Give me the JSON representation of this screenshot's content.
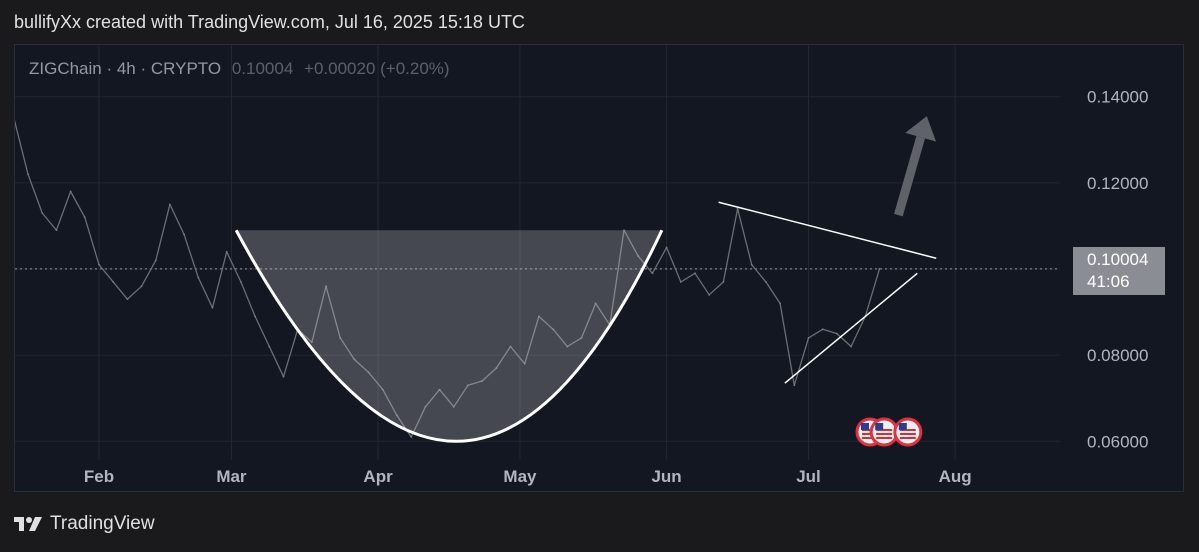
{
  "header": {
    "text": "bullifyXx created with TradingView.com, Jul 16, 2025 15:18 UTC"
  },
  "legend": {
    "symbol": "ZIGChain · 4h · CRYPTO",
    "price": "0.10004",
    "change": "+0.00020 (+0.20%)"
  },
  "price_tag": {
    "price": "0.10004",
    "countdown": "41:06"
  },
  "footer": {
    "brand": "TradingView",
    "logo_icon": "tradingview-logo-icon"
  },
  "colors": {
    "background": "#131722",
    "price_line": "#9598a1",
    "pattern": "#ffffff"
  },
  "chart_data": {
    "type": "line",
    "title": "ZIGChain · 4h · CRYPTO",
    "x_ticks": [
      "Feb",
      "Mar",
      "Apr",
      "May",
      "Jun",
      "Jul",
      "Aug"
    ],
    "y_ticks": [
      "0.14000",
      "0.12000",
      "0.10000",
      "0.08000",
      "0.06000"
    ],
    "ylim": [
      0.048,
      0.152
    ],
    "current_price": 0.10004,
    "grid": true,
    "series": [
      {
        "x": [
          "2025-01-11",
          "2025-01-14",
          "2025-01-17",
          "2025-01-20",
          "2025-01-23",
          "2025-01-26",
          "2025-01-29",
          "2025-02-01",
          "2025-02-04",
          "2025-02-07",
          "2025-02-10",
          "2025-02-13",
          "2025-02-16",
          "2025-02-19",
          "2025-02-22",
          "2025-02-25",
          "2025-02-28",
          "2025-03-03",
          "2025-03-06",
          "2025-03-09",
          "2025-03-12",
          "2025-03-15",
          "2025-03-18",
          "2025-03-21",
          "2025-03-24",
          "2025-03-27",
          "2025-03-30",
          "2025-04-02",
          "2025-04-05",
          "2025-04-08",
          "2025-04-11",
          "2025-04-14",
          "2025-04-17",
          "2025-04-20",
          "2025-04-23",
          "2025-04-26",
          "2025-04-29",
          "2025-05-02",
          "2025-05-05",
          "2025-05-08",
          "2025-05-11",
          "2025-05-14",
          "2025-05-17",
          "2025-05-20",
          "2025-05-23",
          "2025-05-26",
          "2025-05-29",
          "2025-06-01",
          "2025-06-04",
          "2025-06-07",
          "2025-06-10",
          "2025-06-13",
          "2025-06-16",
          "2025-06-19",
          "2025-06-22",
          "2025-06-25",
          "2025-06-28",
          "2025-07-01",
          "2025-07-04",
          "2025-07-07",
          "2025-07-10",
          "2025-07-13",
          "2025-07-16"
        ],
        "values": [
          0.117,
          0.135,
          0.122,
          0.113,
          0.109,
          0.118,
          0.112,
          0.101,
          0.097,
          0.093,
          0.096,
          0.102,
          0.115,
          0.108,
          0.098,
          0.091,
          0.104,
          0.097,
          0.089,
          0.082,
          0.075,
          0.086,
          0.083,
          0.096,
          0.084,
          0.079,
          0.076,
          0.072,
          0.066,
          0.061,
          0.068,
          0.072,
          0.068,
          0.073,
          0.074,
          0.077,
          0.082,
          0.078,
          0.089,
          0.086,
          0.082,
          0.084,
          0.092,
          0.087,
          0.109,
          0.103,
          0.099,
          0.105,
          0.097,
          0.099,
          0.094,
          0.097,
          0.114,
          0.101,
          0.097,
          0.092,
          0.073,
          0.084,
          0.086,
          0.085,
          0.082,
          0.089,
          0.10004
        ]
      }
    ],
    "annotations": {
      "cup_lip": [
        [
          "2025-03-02",
          0.109
        ],
        [
          "2025-05-31",
          0.109
        ]
      ],
      "cup_bottom": [
        "2025-04-19",
        0.06
      ],
      "triangle_upper": [
        [
          "2025-06-12",
          0.1155
        ],
        [
          "2025-07-28",
          0.1025
        ]
      ],
      "triangle_lower": [
        [
          "2025-06-26",
          0.0735
        ],
        [
          "2025-07-24",
          0.099
        ]
      ],
      "arrow": [
        [
          "2025-07-20",
          0.1125
        ],
        [
          "2025-07-26",
          0.1355
        ]
      ]
    },
    "events": [
      {
        "x": "2025-07-14",
        "icon": "us-flag-icon"
      },
      {
        "x": "2025-07-17",
        "icon": "us-flag-icon"
      },
      {
        "x": "2025-07-22",
        "icon": "us-flag-icon"
      }
    ]
  }
}
